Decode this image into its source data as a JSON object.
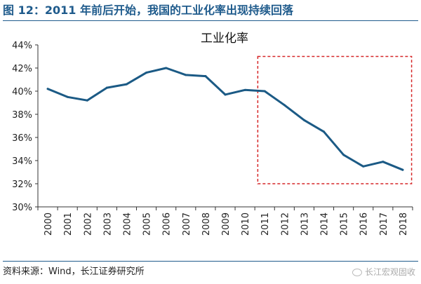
{
  "figure": {
    "title": "图 12：2011 年前后开始，我国的工业化率出现持续回落",
    "source": "资料来源：Wind，长江证券研究所",
    "watermark": "长江宏观固收"
  },
  "colors": {
    "title": "#1f5b8c",
    "line": "#1b5a85",
    "highlight_box": "#d62728"
  },
  "chart_data": {
    "type": "line",
    "title": "工业化率",
    "xlabel": "",
    "ylabel": "",
    "x": [
      "2000",
      "2001",
      "2002",
      "2003",
      "2004",
      "2005",
      "2006",
      "2007",
      "2008",
      "2009",
      "2010",
      "2011",
      "2012",
      "2013",
      "2014",
      "2015",
      "2016",
      "2017",
      "2018"
    ],
    "series": [
      {
        "values": [
          40.2,
          39.5,
          39.2,
          40.3,
          40.6,
          41.6,
          42.0,
          41.4,
          41.3,
          39.7,
          40.1,
          40.0,
          38.8,
          37.5,
          36.5,
          34.5,
          33.5,
          33.9,
          33.2
        ]
      }
    ],
    "ylim": [
      30,
      44
    ],
    "yticks": [
      30,
      32,
      34,
      36,
      38,
      40,
      42,
      44
    ],
    "ytick_labels": [
      "30%",
      "32%",
      "34%",
      "36%",
      "38%",
      "40%",
      "42%",
      "44%"
    ],
    "grid": false,
    "legend": "none",
    "highlight_region": {
      "x_from": "2011",
      "x_to": "2018",
      "y_from": 32,
      "y_to": 43,
      "style": "dashed-box"
    }
  }
}
